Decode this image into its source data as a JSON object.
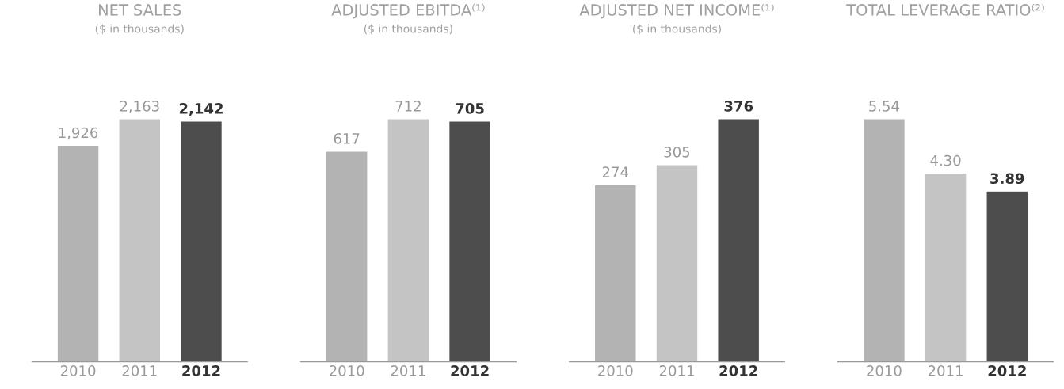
{
  "chart_data": [
    {
      "type": "bar",
      "title": "NET SALES",
      "subtitle": "($ in thousands)",
      "categories": [
        "2010",
        "2011",
        "2012"
      ],
      "values": [
        1926,
        2163,
        2142
      ],
      "colors": [
        "#b3b3b3",
        "#c4c4c4",
        "#4d4d4d"
      ],
      "value_labels": [
        "1,926",
        "2,163",
        "2,142"
      ]
    },
    {
      "type": "bar",
      "title": "ADJUSTED EBITDA⁽¹⁾",
      "subtitle": "($ in thousands)",
      "categories": [
        "2010",
        "2011",
        "2012"
      ],
      "values": [
        617,
        712,
        705
      ],
      "colors": [
        "#b3b3b3",
        "#c4c4c4",
        "#4d4d4d"
      ],
      "data_labels": true
    },
    {
      "type": "bar",
      "title": "ADJUSTED NET INCOME⁽¹⁾",
      "subtitle": "($ in thousands)",
      "categories": [
        "2010",
        "2011",
        "2012"
      ],
      "values": [
        274,
        305,
        376
      ],
      "colors": [
        "#b3b3b3",
        "#c4c4c4",
        "#4d4d4d"
      ],
      "data_labels": true
    },
    {
      "type": "bar",
      "title": "TOTAL LEVERAGE RATIO⁽²⁾",
      "categories": [
        "2010",
        "2011",
        "2012"
      ],
      "values": [
        5.54,
        4.3,
        3.89
      ],
      "colors": [
        "#b3b3b3",
        "#c4c4c4",
        "#4d4d4d"
      ],
      "value_labels": [
        "5.54",
        "4.30",
        "3.89"
      ]
    }
  ]
}
